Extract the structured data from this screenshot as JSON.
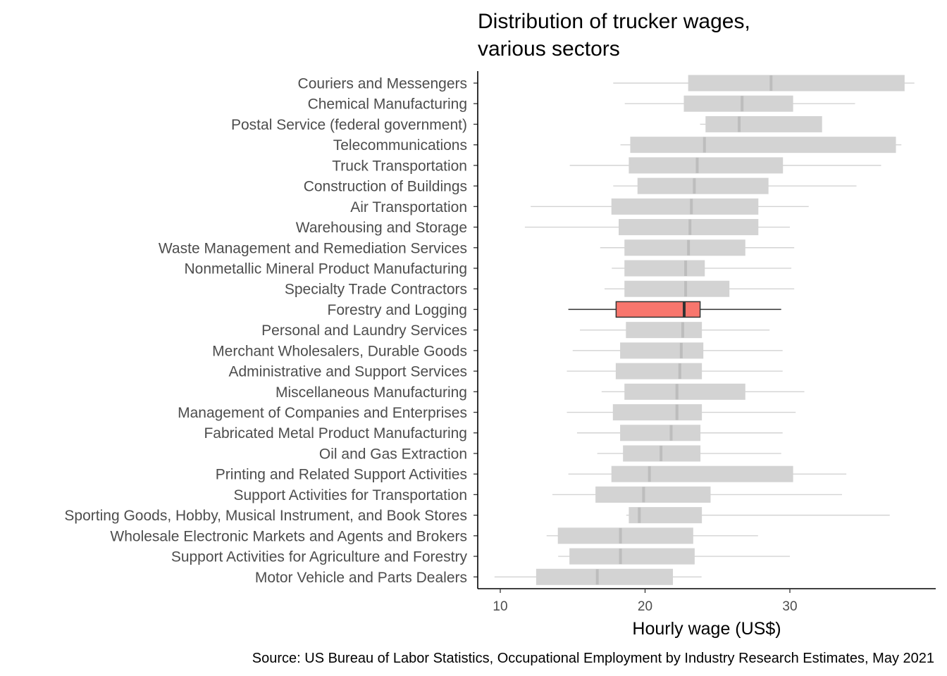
{
  "chart_data": {
    "type": "boxplot",
    "title_lines": [
      "Distribution of trucker wages,",
      "various sectors"
    ],
    "xlabel": "Hourly wage (US$)",
    "ylabel": "",
    "xlim": [
      8.4,
      39.9
    ],
    "xticks": [
      10,
      20,
      30
    ],
    "grid": false,
    "highlight_color": "#f8766d",
    "default_color": "#d3d3d3",
    "source": "Source: US Bureau of Labor Statistics, Occupational Employment by Industry Research Estimates, May 2021",
    "categories": [
      "Couriers and Messengers",
      "Chemical Manufacturing",
      "Postal Service (federal government)",
      "Telecommunications",
      "Truck Transportation",
      "Construction of Buildings",
      "Air Transportation",
      "Warehousing and Storage",
      "Waste Management and Remediation Services",
      "Nonmetallic Mineral Product Manufacturing",
      "Specialty Trade Contractors",
      "Forestry and Logging",
      "Personal and Laundry Services",
      "Merchant Wholesalers, Durable Goods",
      "Administrative and Support Services",
      "Miscellaneous Manufacturing",
      "Management of Companies and Enterprises",
      "Fabricated Metal Product Manufacturing",
      "Oil and Gas Extraction",
      "Printing and Related Support Activities",
      "Support Activities for Transportation",
      "Sporting Goods, Hobby, Musical Instrument, and Book Stores",
      "Wholesale Electronic Markets and Agents and Brokers",
      "Support Activities for Agriculture and Forestry",
      "Motor Vehicle and Parts Dealers"
    ],
    "boxes": [
      {
        "min": 17.8,
        "q1": 23.0,
        "median": 28.7,
        "q3": 37.9,
        "max": 38.6,
        "highlight": false
      },
      {
        "min": 18.6,
        "q1": 22.7,
        "median": 26.7,
        "q3": 30.2,
        "max": 34.5,
        "highlight": false
      },
      {
        "min": 23.8,
        "q1": 24.2,
        "median": 26.5,
        "q3": 32.2,
        "max": 32.2,
        "highlight": false
      },
      {
        "min": 18.3,
        "q1": 19.0,
        "median": 24.1,
        "q3": 37.3,
        "max": 37.7,
        "highlight": false
      },
      {
        "min": 14.8,
        "q1": 18.9,
        "median": 23.6,
        "q3": 29.5,
        "max": 36.3,
        "highlight": false
      },
      {
        "min": 17.8,
        "q1": 19.5,
        "median": 23.4,
        "q3": 28.5,
        "max": 34.6,
        "highlight": false
      },
      {
        "min": 12.1,
        "q1": 17.7,
        "median": 23.2,
        "q3": 27.8,
        "max": 31.3,
        "highlight": false
      },
      {
        "min": 11.7,
        "q1": 18.2,
        "median": 23.1,
        "q3": 27.8,
        "max": 30.0,
        "highlight": false
      },
      {
        "min": 16.9,
        "q1": 18.6,
        "median": 23.0,
        "q3": 26.9,
        "max": 30.3,
        "highlight": false
      },
      {
        "min": 17.7,
        "q1": 18.6,
        "median": 22.8,
        "q3": 24.1,
        "max": 30.1,
        "highlight": false
      },
      {
        "min": 17.2,
        "q1": 18.6,
        "median": 22.8,
        "q3": 25.8,
        "max": 30.3,
        "highlight": false
      },
      {
        "min": 14.7,
        "q1": 18.0,
        "median": 22.7,
        "q3": 23.8,
        "max": 29.4,
        "highlight": true
      },
      {
        "min": 15.5,
        "q1": 18.7,
        "median": 22.6,
        "q3": 23.9,
        "max": 28.6,
        "highlight": false
      },
      {
        "min": 15.0,
        "q1": 18.3,
        "median": 22.5,
        "q3": 24.0,
        "max": 29.5,
        "highlight": false
      },
      {
        "min": 14.6,
        "q1": 18.0,
        "median": 22.4,
        "q3": 23.9,
        "max": 29.5,
        "highlight": false
      },
      {
        "min": 17.0,
        "q1": 18.6,
        "median": 22.2,
        "q3": 26.9,
        "max": 31.0,
        "highlight": false
      },
      {
        "min": 14.6,
        "q1": 17.8,
        "median": 22.2,
        "q3": 23.9,
        "max": 30.4,
        "highlight": false
      },
      {
        "min": 15.3,
        "q1": 18.3,
        "median": 21.8,
        "q3": 23.8,
        "max": 29.5,
        "highlight": false
      },
      {
        "min": 16.7,
        "q1": 18.5,
        "median": 21.1,
        "q3": 23.8,
        "max": 29.4,
        "highlight": false
      },
      {
        "min": 14.7,
        "q1": 17.7,
        "median": 20.3,
        "q3": 30.2,
        "max": 33.9,
        "highlight": false
      },
      {
        "min": 13.6,
        "q1": 16.6,
        "median": 19.9,
        "q3": 24.5,
        "max": 33.6,
        "highlight": false
      },
      {
        "min": 18.7,
        "q1": 18.9,
        "median": 19.6,
        "q3": 23.9,
        "max": 36.9,
        "highlight": false
      },
      {
        "min": 13.2,
        "q1": 14.0,
        "median": 18.3,
        "q3": 23.3,
        "max": 27.8,
        "highlight": false
      },
      {
        "min": 14.0,
        "q1": 14.8,
        "median": 18.3,
        "q3": 23.4,
        "max": 30.0,
        "highlight": false
      },
      {
        "min": 9.6,
        "q1": 12.5,
        "median": 16.7,
        "q3": 21.9,
        "max": 23.9,
        "highlight": false
      }
    ]
  }
}
